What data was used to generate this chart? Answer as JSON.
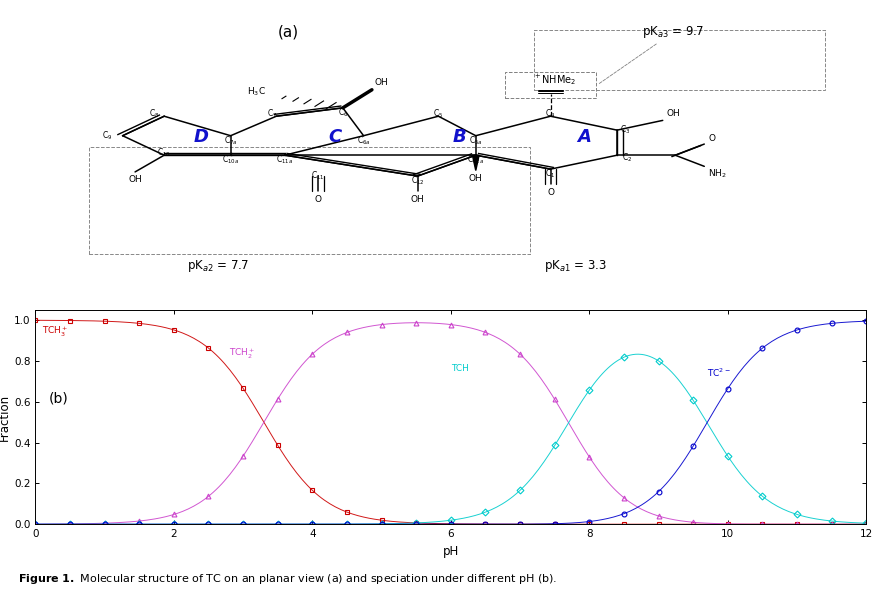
{
  "title_a": "(a)",
  "pka1": 3.3,
  "pka2": 7.7,
  "pka3": 9.7,
  "xlabel": "pH",
  "ylabel": "Fraction",
  "ylim": [
    0.0,
    1.05
  ],
  "xlim": [
    0,
    12
  ],
  "xticks": [
    0,
    2,
    4,
    6,
    8,
    10,
    12
  ],
  "yticks": [
    0.0,
    0.2,
    0.4,
    0.6,
    0.8,
    1.0
  ],
  "colors": [
    "#cc0000",
    "#cc44cc",
    "#00cccc",
    "#0000cc"
  ],
  "markers": [
    "s",
    "^",
    "D",
    "o"
  ],
  "ring_labels": [
    "A",
    "B",
    "C",
    "D"
  ],
  "ring_label_color": "#1111cc",
  "background_color": "#ffffff",
  "fig_width": 8.84,
  "fig_height": 5.89
}
